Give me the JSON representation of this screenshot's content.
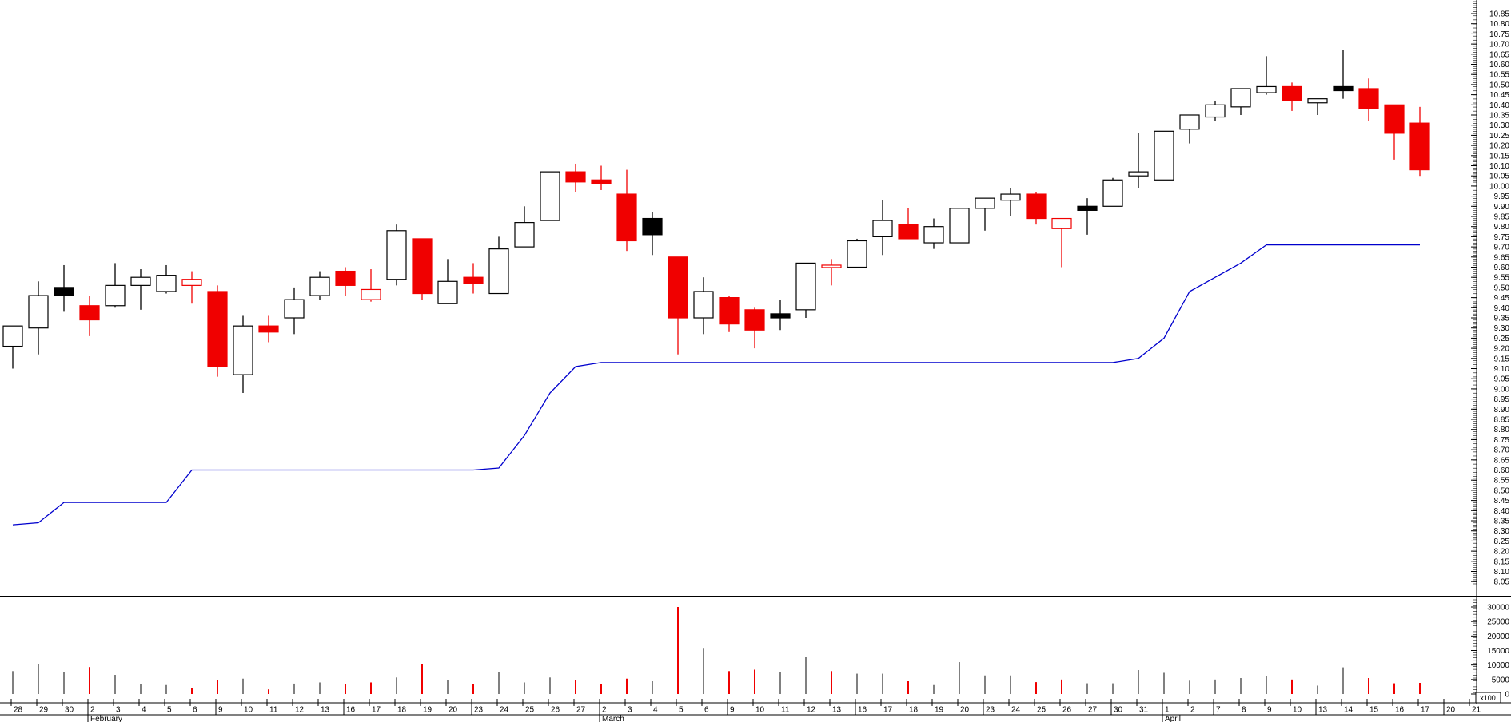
{
  "chart_data": {
    "type": "candlestick",
    "title": "",
    "description": "Daily candlestick price chart with blue trailing-stop line and volume sub-chart",
    "colors": {
      "up_candle_fill": "#ffffff",
      "down_candle_fill": "#f00000",
      "black_candle_fill": "#000000",
      "candle_outline": "#000000",
      "red_outline": "#f00000",
      "stop_line": "#0000cd",
      "volume_up": "#808080",
      "volume_down": "#f00000",
      "axis": "#000000"
    },
    "price_axis": {
      "min": 8.05,
      "max": 10.85,
      "step": 0.05,
      "side": "right"
    },
    "volume_axis": {
      "min": 0,
      "max": 30000,
      "step": 5000,
      "multiplier_label": "x100"
    },
    "months": [
      {
        "label": "February",
        "index": 3
      },
      {
        "label": "March",
        "index": 23
      },
      {
        "label": "April",
        "index": 45
      }
    ],
    "week_start_indices": [
      8,
      13,
      18,
      28,
      33,
      38,
      43,
      47,
      51,
      56
    ],
    "dates": [
      "28",
      "29",
      "30",
      "2",
      "3",
      "4",
      "5",
      "6",
      "9",
      "10",
      "11",
      "12",
      "13",
      "16",
      "17",
      "18",
      "19",
      "20",
      "23",
      "24",
      "25",
      "26",
      "27",
      "2",
      "3",
      "4",
      "5",
      "6",
      "9",
      "10",
      "11",
      "12",
      "13",
      "16",
      "17",
      "18",
      "19",
      "20",
      "23",
      "24",
      "25",
      "26",
      "27",
      "30",
      "31",
      "1",
      "2",
      "7",
      "8",
      "9",
      "10",
      "13",
      "14",
      "15",
      "16",
      "17",
      "20",
      "21"
    ],
    "candles": [
      {
        "date": "Jan 28",
        "o": 9.21,
        "h": 9.31,
        "l": 9.1,
        "c": 9.31,
        "k": "w"
      },
      {
        "date": "Jan 29",
        "o": 9.3,
        "h": 9.53,
        "l": 9.17,
        "c": 9.46,
        "k": "w"
      },
      {
        "date": "Jan 30",
        "o": 9.5,
        "h": 9.61,
        "l": 9.38,
        "c": 9.46,
        "k": "b"
      },
      {
        "date": "Feb 2",
        "o": 9.41,
        "h": 9.46,
        "l": 9.26,
        "c": 9.34,
        "k": "r"
      },
      {
        "date": "Feb 3",
        "o": 9.41,
        "h": 9.62,
        "l": 9.4,
        "c": 9.51,
        "k": "w"
      },
      {
        "date": "Feb 4",
        "o": 9.51,
        "h": 9.59,
        "l": 9.39,
        "c": 9.55,
        "k": "w"
      },
      {
        "date": "Feb 5",
        "o": 9.48,
        "h": 9.61,
        "l": 9.47,
        "c": 9.56,
        "k": "w"
      },
      {
        "date": "Feb 6",
        "o": 9.51,
        "h": 9.58,
        "l": 9.42,
        "c": 9.54,
        "k": "rh"
      },
      {
        "date": "Feb 9",
        "o": 9.48,
        "h": 9.51,
        "l": 9.06,
        "c": 9.11,
        "k": "r"
      },
      {
        "date": "Feb 10",
        "o": 9.07,
        "h": 9.36,
        "l": 8.98,
        "c": 9.31,
        "k": "w"
      },
      {
        "date": "Feb 11",
        "o": 9.31,
        "h": 9.36,
        "l": 9.23,
        "c": 9.28,
        "k": "r"
      },
      {
        "date": "Feb 12",
        "o": 9.35,
        "h": 9.5,
        "l": 9.27,
        "c": 9.44,
        "k": "w"
      },
      {
        "date": "Feb 13",
        "o": 9.46,
        "h": 9.58,
        "l": 9.44,
        "c": 9.55,
        "k": "w"
      },
      {
        "date": "Feb 16",
        "o": 9.58,
        "h": 9.6,
        "l": 9.46,
        "c": 9.51,
        "k": "r"
      },
      {
        "date": "Feb 17",
        "o": 9.44,
        "h": 9.59,
        "l": 9.43,
        "c": 9.49,
        "k": "rh"
      },
      {
        "date": "Feb 18",
        "o": 9.54,
        "h": 9.81,
        "l": 9.51,
        "c": 9.78,
        "k": "w"
      },
      {
        "date": "Feb 19",
        "o": 9.74,
        "h": 9.74,
        "l": 9.44,
        "c": 9.47,
        "k": "r"
      },
      {
        "date": "Feb 20",
        "o": 9.42,
        "h": 9.64,
        "l": 9.42,
        "c": 9.53,
        "k": "w"
      },
      {
        "date": "Feb 23",
        "o": 9.55,
        "h": 9.62,
        "l": 9.47,
        "c": 9.52,
        "k": "r"
      },
      {
        "date": "Feb 24",
        "o": 9.47,
        "h": 9.75,
        "l": 9.47,
        "c": 9.69,
        "k": "w"
      },
      {
        "date": "Feb 25",
        "o": 9.7,
        "h": 9.9,
        "l": 9.7,
        "c": 9.82,
        "k": "w"
      },
      {
        "date": "Feb 26",
        "o": 9.83,
        "h": 10.07,
        "l": 9.83,
        "c": 10.07,
        "k": "w"
      },
      {
        "date": "Feb 27",
        "o": 10.07,
        "h": 10.11,
        "l": 9.97,
        "c": 10.02,
        "k": "r"
      },
      {
        "date": "Mar 2",
        "o": 10.03,
        "h": 10.1,
        "l": 9.98,
        "c": 10.01,
        "k": "r"
      },
      {
        "date": "Mar 3",
        "o": 9.96,
        "h": 10.08,
        "l": 9.68,
        "c": 9.73,
        "k": "r"
      },
      {
        "date": "Mar 4",
        "o": 9.84,
        "h": 9.87,
        "l": 9.66,
        "c": 9.76,
        "k": "b"
      },
      {
        "date": "Mar 5",
        "o": 9.65,
        "h": 9.65,
        "l": 9.17,
        "c": 9.35,
        "k": "r"
      },
      {
        "date": "Mar 6",
        "o": 9.35,
        "h": 9.55,
        "l": 9.27,
        "c": 9.48,
        "k": "w"
      },
      {
        "date": "Mar 9",
        "o": 9.45,
        "h": 9.46,
        "l": 9.28,
        "c": 9.32,
        "k": "r"
      },
      {
        "date": "Mar 10",
        "o": 9.39,
        "h": 9.4,
        "l": 9.2,
        "c": 9.29,
        "k": "r"
      },
      {
        "date": "Mar 11",
        "o": 9.37,
        "h": 9.44,
        "l": 9.29,
        "c": 9.35,
        "k": "b"
      },
      {
        "date": "Mar 12",
        "o": 9.39,
        "h": 9.62,
        "l": 9.35,
        "c": 9.62,
        "k": "w"
      },
      {
        "date": "Mar 13",
        "o": 9.6,
        "h": 9.64,
        "l": 9.51,
        "c": 9.61,
        "k": "rh"
      },
      {
        "date": "Mar 16",
        "o": 9.6,
        "h": 9.74,
        "l": 9.6,
        "c": 9.73,
        "k": "w"
      },
      {
        "date": "Mar 17",
        "o": 9.75,
        "h": 9.93,
        "l": 9.66,
        "c": 9.83,
        "k": "w"
      },
      {
        "date": "Mar 18",
        "o": 9.81,
        "h": 9.89,
        "l": 9.74,
        "c": 9.74,
        "k": "r"
      },
      {
        "date": "Mar 19",
        "o": 9.72,
        "h": 9.84,
        "l": 9.69,
        "c": 9.8,
        "k": "w"
      },
      {
        "date": "Mar 20",
        "o": 9.72,
        "h": 9.89,
        "l": 9.72,
        "c": 9.89,
        "k": "w"
      },
      {
        "date": "Mar 23",
        "o": 9.89,
        "h": 9.94,
        "l": 9.78,
        "c": 9.94,
        "k": "w"
      },
      {
        "date": "Mar 24",
        "o": 9.93,
        "h": 9.99,
        "l": 9.85,
        "c": 9.96,
        "k": "w"
      },
      {
        "date": "Mar 25",
        "o": 9.96,
        "h": 9.97,
        "l": 9.81,
        "c": 9.84,
        "k": "r"
      },
      {
        "date": "Mar 26",
        "o": 9.79,
        "h": 9.84,
        "l": 9.6,
        "c": 9.84,
        "k": "rh"
      },
      {
        "date": "Mar 27",
        "o": 9.9,
        "h": 9.94,
        "l": 9.76,
        "c": 9.88,
        "k": "b"
      },
      {
        "date": "Mar 30",
        "o": 9.9,
        "h": 10.04,
        "l": 9.9,
        "c": 10.03,
        "k": "w"
      },
      {
        "date": "Mar 31",
        "o": 10.05,
        "h": 10.26,
        "l": 9.99,
        "c": 10.07,
        "k": "w"
      },
      {
        "date": "Apr 1",
        "o": 10.03,
        "h": 10.27,
        "l": 10.03,
        "c": 10.27,
        "k": "w"
      },
      {
        "date": "Apr 2",
        "o": 10.28,
        "h": 10.35,
        "l": 10.21,
        "c": 10.35,
        "k": "w"
      },
      {
        "date": "Apr 7",
        "o": 10.34,
        "h": 10.42,
        "l": 10.32,
        "c": 10.4,
        "k": "w"
      },
      {
        "date": "Apr 8",
        "o": 10.39,
        "h": 10.48,
        "l": 10.35,
        "c": 10.48,
        "k": "w"
      },
      {
        "date": "Apr 9",
        "o": 10.46,
        "h": 10.64,
        "l": 10.45,
        "c": 10.49,
        "k": "w"
      },
      {
        "date": "Apr 10",
        "o": 10.49,
        "h": 10.51,
        "l": 10.37,
        "c": 10.42,
        "k": "r"
      },
      {
        "date": "Apr 13",
        "o": 10.41,
        "h": 10.43,
        "l": 10.35,
        "c": 10.43,
        "k": "w"
      },
      {
        "date": "Apr 14",
        "o": 10.49,
        "h": 10.67,
        "l": 10.43,
        "c": 10.47,
        "k": "b"
      },
      {
        "date": "Apr 15",
        "o": 10.48,
        "h": 10.53,
        "l": 10.32,
        "c": 10.38,
        "k": "r"
      },
      {
        "date": "Apr 16",
        "o": 10.4,
        "h": 10.4,
        "l": 10.13,
        "c": 10.26,
        "k": "r"
      },
      {
        "date": "Apr 17",
        "o": 10.31,
        "h": 10.39,
        "l": 10.05,
        "c": 10.08,
        "k": "r"
      }
    ],
    "volumes": [
      [
        7900,
        "g"
      ],
      [
        10400,
        "g"
      ],
      [
        7500,
        "g"
      ],
      [
        9300,
        "r"
      ],
      [
        6600,
        "g"
      ],
      [
        3400,
        "g"
      ],
      [
        3100,
        "g"
      ],
      [
        2200,
        "r"
      ],
      [
        4900,
        "r"
      ],
      [
        5300,
        "g"
      ],
      [
        1600,
        "r"
      ],
      [
        3600,
        "g"
      ],
      [
        4000,
        "g"
      ],
      [
        3500,
        "r"
      ],
      [
        4000,
        "r"
      ],
      [
        5700,
        "g"
      ],
      [
        10200,
        "r"
      ],
      [
        4900,
        "g"
      ],
      [
        3500,
        "r"
      ],
      [
        7500,
        "g"
      ],
      [
        4000,
        "g"
      ],
      [
        5700,
        "g"
      ],
      [
        4900,
        "r"
      ],
      [
        3500,
        "r"
      ],
      [
        5300,
        "r"
      ],
      [
        4400,
        "g"
      ],
      [
        30000,
        "r"
      ],
      [
        15900,
        "g"
      ],
      [
        7900,
        "r"
      ],
      [
        8400,
        "r"
      ],
      [
        7500,
        "g"
      ],
      [
        12800,
        "g"
      ],
      [
        7900,
        "r"
      ],
      [
        7000,
        "g"
      ],
      [
        7000,
        "g"
      ],
      [
        4400,
        "r"
      ],
      [
        3100,
        "g"
      ],
      [
        11000,
        "g"
      ],
      [
        6400,
        "g"
      ],
      [
        6400,
        "g"
      ],
      [
        4100,
        "r"
      ],
      [
        5000,
        "r"
      ],
      [
        3700,
        "g"
      ],
      [
        3700,
        "g"
      ],
      [
        8250,
        "g"
      ],
      [
        7300,
        "g"
      ],
      [
        4600,
        "g"
      ],
      [
        5000,
        "g"
      ],
      [
        5500,
        "g"
      ],
      [
        6200,
        "g"
      ],
      [
        5000,
        "r"
      ],
      [
        2900,
        "g"
      ],
      [
        9200,
        "g"
      ],
      [
        5500,
        "r"
      ],
      [
        3700,
        "r"
      ],
      [
        3850,
        "r"
      ]
    ],
    "stop_line": [
      8.33,
      8.34,
      8.44,
      8.44,
      8.44,
      8.44,
      8.44,
      8.6,
      8.6,
      8.6,
      8.6,
      8.6,
      8.6,
      8.6,
      8.6,
      8.6,
      8.6,
      8.6,
      8.6,
      8.61,
      8.77,
      8.98,
      9.11,
      9.13,
      9.13,
      9.13,
      9.13,
      9.13,
      9.13,
      9.13,
      9.13,
      9.13,
      9.13,
      9.13,
      9.13,
      9.13,
      9.13,
      9.13,
      9.13,
      9.13,
      9.13,
      9.13,
      9.13,
      9.13,
      9.15,
      9.25,
      9.48,
      9.55,
      9.62,
      9.71,
      9.71,
      9.71,
      9.71,
      9.71,
      9.71,
      9.71
    ]
  }
}
